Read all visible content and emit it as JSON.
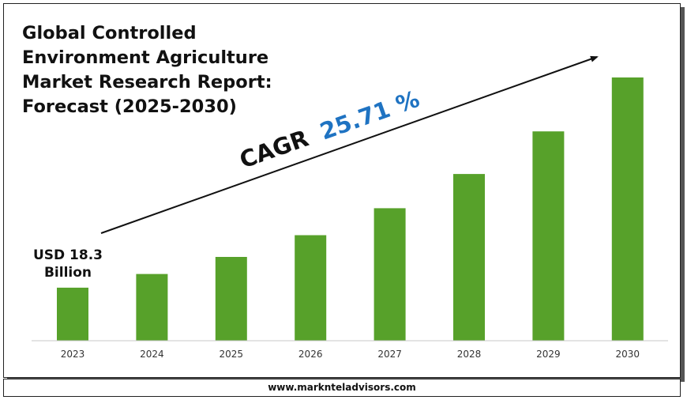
{
  "title_lines": [
    "Global Controlled",
    "Environment Agriculture",
    "Market Research Report:",
    "Forecast (2025-2030)"
  ],
  "start_label_lines": [
    "USD 18.3",
    "Billion"
  ],
  "cagr": {
    "prefix": "CAGR",
    "value": "25.71 %"
  },
  "footer": {
    "website": "www.marknteladvisors.com"
  },
  "colors": {
    "bar": "#57a12a",
    "cagr_value": "#1f73c2",
    "axis": "#c8c8c8",
    "text": "#111111"
  },
  "chart_data": {
    "type": "bar",
    "title": "Global Controlled Environment Agriculture Market Research Report: Forecast (2025-2030)",
    "categories": [
      "2023",
      "2024",
      "2025",
      "2026",
      "2027",
      "2028",
      "2029",
      "2030"
    ],
    "values": [
      18.3,
      23.0,
      28.9,
      36.4,
      45.7,
      57.5,
      72.2,
      90.8
    ],
    "unit": "USD Billion",
    "annotation": "CAGR 25.71 %",
    "xlabel": "",
    "ylabel": "",
    "ylim": [
      0,
      90.8
    ],
    "grid": false,
    "legend": "none"
  }
}
